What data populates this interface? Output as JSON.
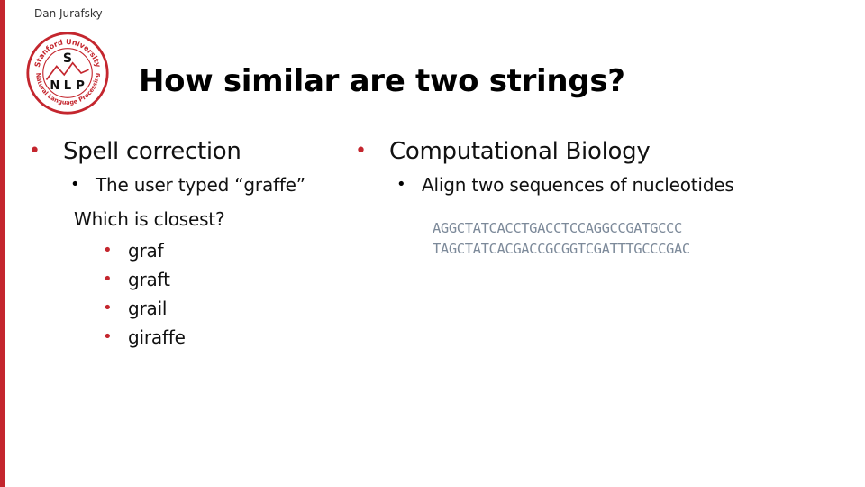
{
  "slide": {
    "author": "Dan Jurafsky",
    "title": "How similar are two strings?",
    "logo": {
      "icon": "stanford-nlp-seal",
      "top_arc_text": "Stanford University",
      "bottom_arc_text": "Natural Language Processing",
      "letters": [
        "S",
        "N",
        "L",
        "P"
      ]
    },
    "colors": {
      "accent": "#c4262e",
      "sequence_text": "#7d8a9a"
    }
  },
  "left": {
    "heading": "Spell correction",
    "sub_bullet": "The user typed “graffe”",
    "question": "Which is closest?",
    "options": [
      "graf",
      "graft",
      "grail",
      "giraffe"
    ]
  },
  "right": {
    "heading": "Computational Biology",
    "sub_bullet": "Align two sequences of nucleotides",
    "sequences": [
      "AGGCTATCACCTGACCTCCAGGCCGATGCCC",
      "TAGCTATCACGACCGCGGTCGATTTGCCCGAC"
    ]
  }
}
